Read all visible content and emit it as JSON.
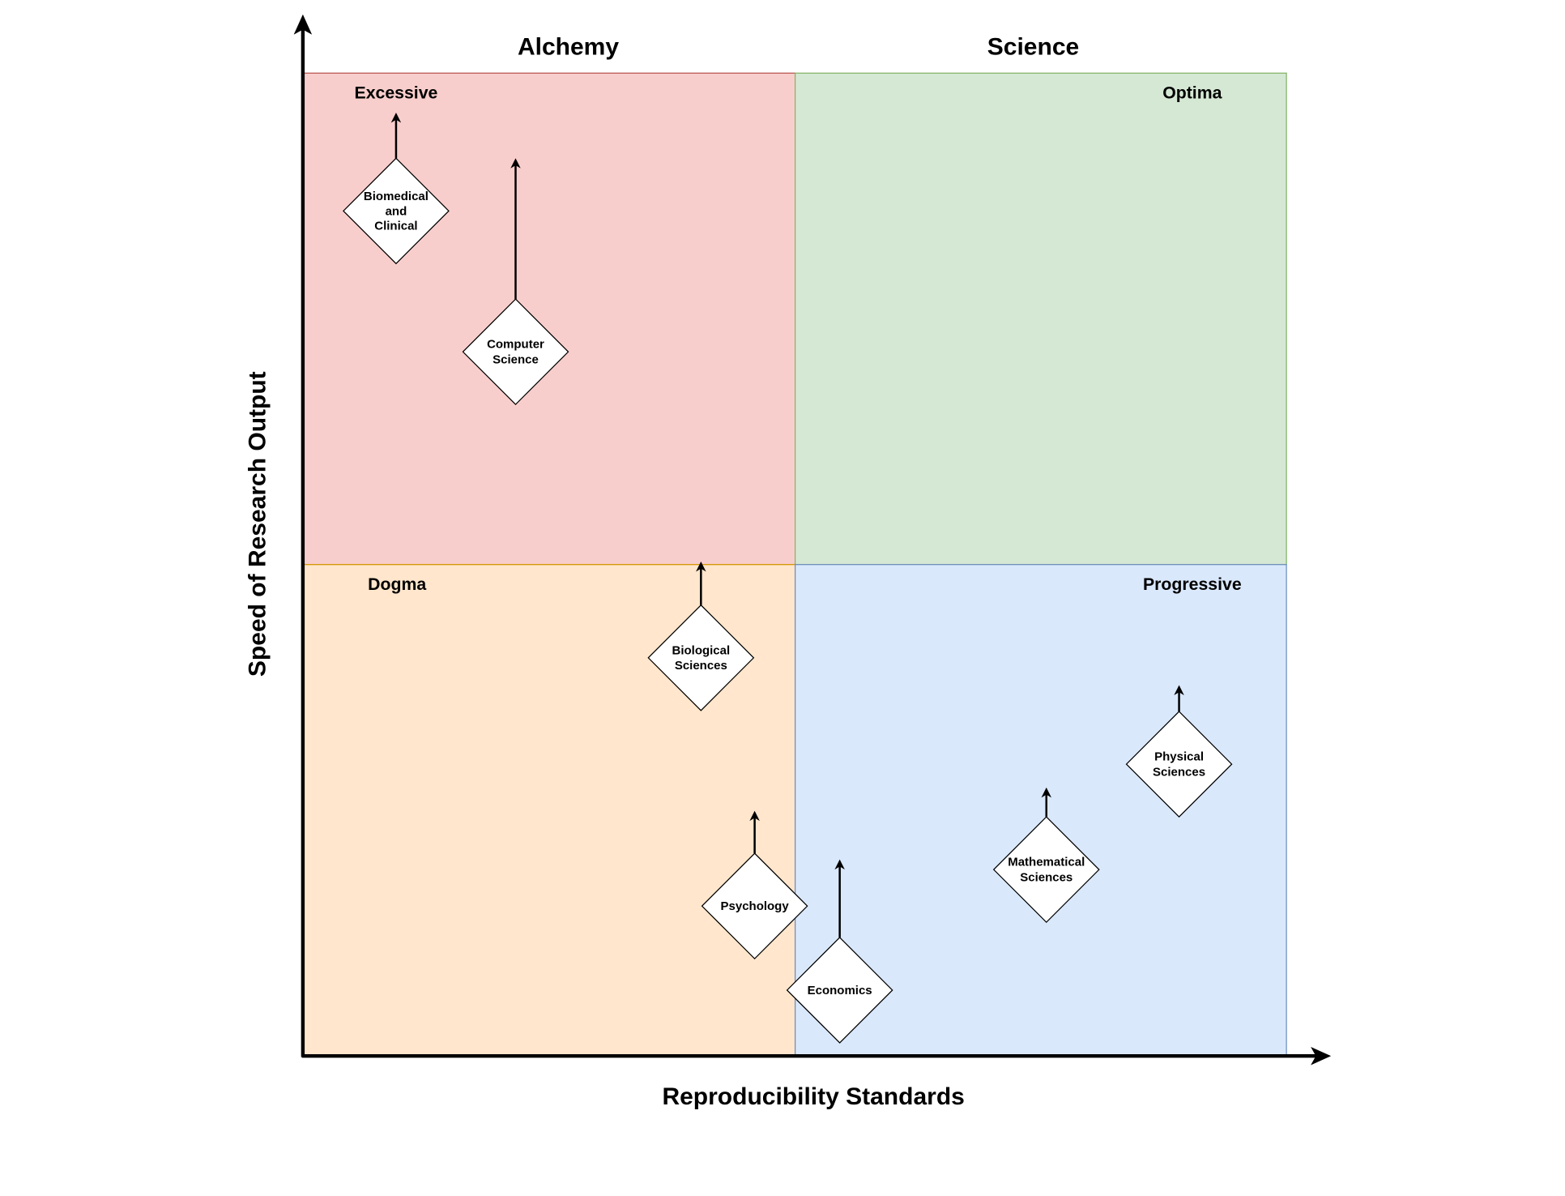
{
  "column_titles": {
    "left": "Alchemy",
    "right": "Science"
  },
  "axes": {
    "x_label": "Reproducibility Standards",
    "y_label": "Speed of Research Output"
  },
  "quadrants": {
    "top_left": {
      "label": "Excessive",
      "fill": "#f8cecc",
      "stroke": "#b85450"
    },
    "top_right": {
      "label": "Optima",
      "fill": "#d5e8d4",
      "stroke": "#82b366"
    },
    "bottom_left": {
      "label": "Dogma",
      "fill": "#ffe6cc",
      "stroke": "#d79b00"
    },
    "bottom_right": {
      "label": "Progressive",
      "fill": "#dae8fc",
      "stroke": "#6c8ebf"
    }
  },
  "fields": [
    {
      "lines": [
        "Biomedical",
        "and",
        "Clinical"
      ],
      "quadrant": "Excessive",
      "trend": "up"
    },
    {
      "lines": [
        "Computer",
        "Science"
      ],
      "quadrant": "Excessive",
      "trend": "up"
    },
    {
      "lines": [
        "Biological",
        "Sciences"
      ],
      "quadrant": "Dogma",
      "trend": "up"
    },
    {
      "lines": [
        "Psychology"
      ],
      "quadrant": "Dogma",
      "trend": "up"
    },
    {
      "lines": [
        "Economics"
      ],
      "quadrant": "Progressive",
      "trend": "up"
    },
    {
      "lines": [
        "Mathematical",
        "Sciences"
      ],
      "quadrant": "Progressive",
      "trend": "up"
    },
    {
      "lines": [
        "Physical",
        "Sciences"
      ],
      "quadrant": "Progressive",
      "trend": "up"
    }
  ]
}
